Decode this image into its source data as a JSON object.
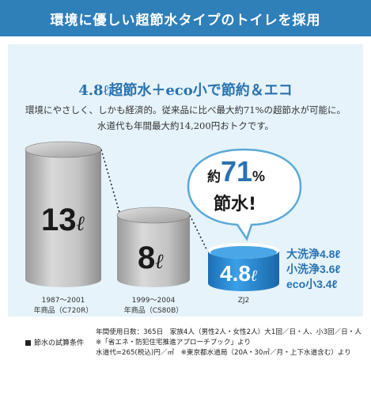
{
  "header": {
    "title": "環境に優しい超節水タイプのトイレを採用"
  },
  "headline": "4.8ℓ超節水＋eco小で節約＆エコ",
  "subtext": [
    "環境にやさしく、しかも経済的。従来品に比べ最大約71%の超節水が可能に。",
    "水道代も年間最大約14,200円おトクです。"
  ],
  "cylinders": [
    {
      "value": "13",
      "unit": "ℓ",
      "caption_line1": "1987～2001",
      "caption_line2": "年商品（C720R）"
    },
    {
      "value": "8",
      "unit": "ℓ",
      "caption_line1": "1999～2004",
      "caption_line2": "年商品（CS80B）"
    },
    {
      "value": "4.8",
      "unit": "ℓ",
      "caption_line1": "ZJ2",
      "caption_line2": ""
    }
  ],
  "bubble": {
    "prefix": "約",
    "number": "71",
    "percent": "%",
    "line2": "節水!"
  },
  "wash_modes": [
    "大洗浄4.8ℓ",
    "小洗浄3.6ℓ",
    "eco小3.4ℓ"
  ],
  "conditions": {
    "title": "節水の試算条件",
    "lines": [
      "年間使用日数：365日　家族4人（男性2人・女性2人）大1回／日・人、小3回／日・人",
      "※「省エネ・防犯住宅推進アプローチブック」より",
      "水道代=265(税込)円／㎥　※東京都水道局（20A・30㎥／月・上下水道含む）より"
    ]
  },
  "colors": {
    "accent": "#2f7fb9",
    "panel": "#e6f3fa",
    "gray": "#b5b5b5",
    "water": "#2a8fd6"
  }
}
